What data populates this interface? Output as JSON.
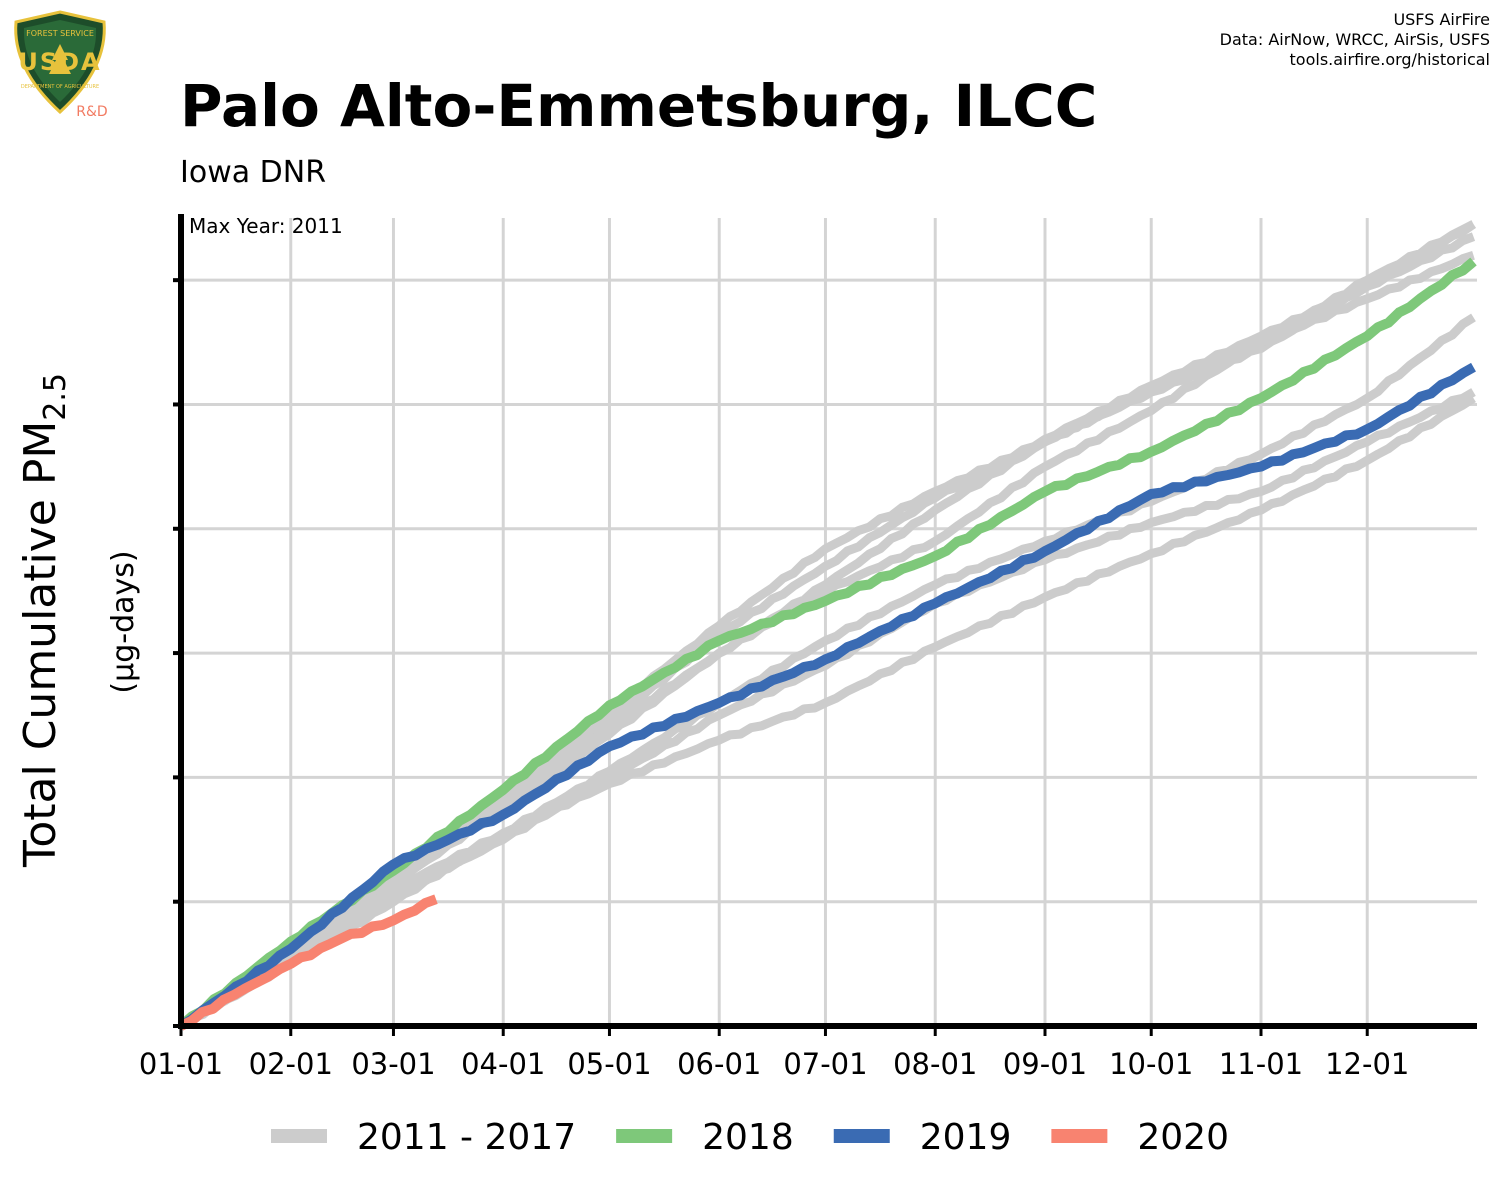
{
  "header": {
    "title": "Palo Alto-Emmetsburg, ILCC",
    "subtitle": "Iowa DNR",
    "credits": [
      "USFS AirFire",
      "Data: AirNow, WRCC, AirSis, USFS",
      "tools.airfire.org/historical"
    ]
  },
  "logo": {
    "top_text": "FOREST SERVICE",
    "letters": "USDA",
    "bottom_text": "DEPARTMENT OF AGRICULTURE",
    "tag": "R&D"
  },
  "chart_data": {
    "type": "line",
    "ylabel": "Total Cumulative PM2.5",
    "ylabel_main": "Total Cumulative PM",
    "ylabel_sub": "2.5",
    "ylabel_units": "(µg-days)",
    "annotation": "Max Year: 2011",
    "x_tick_labels": [
      "01-01",
      "02-01",
      "03-01",
      "04-01",
      "05-01",
      "06-01",
      "07-01",
      "08-01",
      "09-01",
      "10-01",
      "11-01",
      "12-01"
    ],
    "x_tick_days": [
      0,
      31,
      60,
      91,
      121,
      152,
      182,
      213,
      244,
      274,
      305,
      335
    ],
    "xlim": [
      0,
      366
    ],
    "ylim": [
      0,
      6.5
    ],
    "y_ticks": [
      0,
      1,
      2,
      3,
      4,
      5,
      6
    ],
    "y_tick_labels_shown": false,
    "grid": true,
    "legend_position": "bottom",
    "colors": {
      "background_years": "#cccccc",
      "2018": "#7ec87a",
      "2019": "#3a6bb3",
      "2020": "#f88370"
    },
    "series": [
      {
        "name": "2011 - 2017",
        "group": "background",
        "x": [
          0,
          31,
          60,
          91,
          121,
          152,
          182,
          213,
          244,
          274,
          305,
          335,
          365
        ],
        "values": [
          0,
          0.64,
          1.25,
          1.85,
          2.53,
          3.22,
          3.84,
          4.3,
          4.7,
          5.1,
          5.45,
          5.95,
          6.45
        ]
      },
      {
        "name": "2011 - 2017",
        "group": "background",
        "x": [
          0,
          31,
          60,
          91,
          121,
          152,
          182,
          213,
          244,
          274,
          305,
          335,
          365
        ],
        "values": [
          0,
          0.62,
          1.2,
          1.8,
          2.45,
          3.15,
          3.7,
          4.25,
          4.72,
          5.15,
          5.55,
          5.95,
          6.35
        ]
      },
      {
        "name": "2011 - 2017",
        "group": "background",
        "x": [
          0,
          31,
          60,
          91,
          121,
          152,
          182,
          213,
          244,
          274,
          305,
          335,
          365
        ],
        "values": [
          0,
          0.6,
          1.15,
          1.75,
          2.35,
          3.0,
          3.55,
          4.15,
          4.7,
          5.12,
          5.5,
          5.85,
          6.2
        ]
      },
      {
        "name": "2011 - 2017",
        "group": "background",
        "x": [
          0,
          31,
          60,
          91,
          121,
          152,
          182,
          213,
          244,
          274,
          305,
          335,
          365
        ],
        "values": [
          0,
          0.52,
          1.05,
          1.5,
          2.0,
          2.5,
          2.9,
          3.4,
          3.75,
          4.05,
          4.3,
          4.7,
          5.1
        ]
      },
      {
        "name": "2011 - 2017",
        "group": "background",
        "x": [
          0,
          31,
          60,
          91,
          121,
          152,
          182,
          213,
          244,
          274,
          305,
          335,
          365
        ],
        "values": [
          0,
          0.55,
          1.1,
          1.55,
          1.95,
          2.3,
          2.6,
          3.05,
          3.45,
          3.8,
          4.15,
          4.55,
          5.05
        ]
      },
      {
        "name": "2011 - 2017",
        "group": "background",
        "x": [
          0,
          31,
          60,
          91,
          121,
          152,
          182,
          213,
          244,
          274,
          305,
          335,
          365
        ],
        "values": [
          0,
          0.5,
          1.0,
          1.55,
          2.05,
          2.6,
          3.1,
          3.55,
          3.9,
          4.22,
          4.6,
          5.05,
          5.7
        ]
      },
      {
        "name": "2011 - 2017",
        "group": "background",
        "x": [
          0,
          31,
          60,
          91,
          121,
          152,
          182,
          213,
          244,
          274,
          305,
          335,
          365
        ],
        "values": [
          0,
          0.6,
          1.2,
          1.8,
          2.4,
          3.0,
          3.5,
          3.9,
          4.5,
          4.95,
          5.5,
          6.0,
          6.45
        ]
      },
      {
        "name": "2018",
        "x": [
          0,
          31,
          60,
          91,
          121,
          152,
          182,
          213,
          244,
          274,
          305,
          335,
          365
        ],
        "values": [
          0,
          0.68,
          1.25,
          1.9,
          2.58,
          3.1,
          3.42,
          3.78,
          4.3,
          4.62,
          5.05,
          5.55,
          6.15
        ]
      },
      {
        "name": "2019",
        "x": [
          0,
          31,
          60,
          91,
          121,
          152,
          182,
          213,
          244,
          274,
          305,
          335,
          365
        ],
        "values": [
          0,
          0.62,
          1.3,
          1.7,
          2.25,
          2.6,
          2.95,
          3.4,
          3.82,
          4.28,
          4.5,
          4.8,
          5.3
        ]
      },
      {
        "name": "2020",
        "x": [
          0,
          15,
          31,
          45,
          60,
          72
        ],
        "values": [
          0,
          0.25,
          0.5,
          0.7,
          0.85,
          1.02
        ]
      }
    ],
    "legend": [
      {
        "label": "2011 - 2017",
        "color": "#cccccc"
      },
      {
        "label": "2018",
        "color": "#7ec87a"
      },
      {
        "label": "2019",
        "color": "#3a6bb3"
      },
      {
        "label": "2020",
        "color": "#f88370"
      }
    ]
  }
}
